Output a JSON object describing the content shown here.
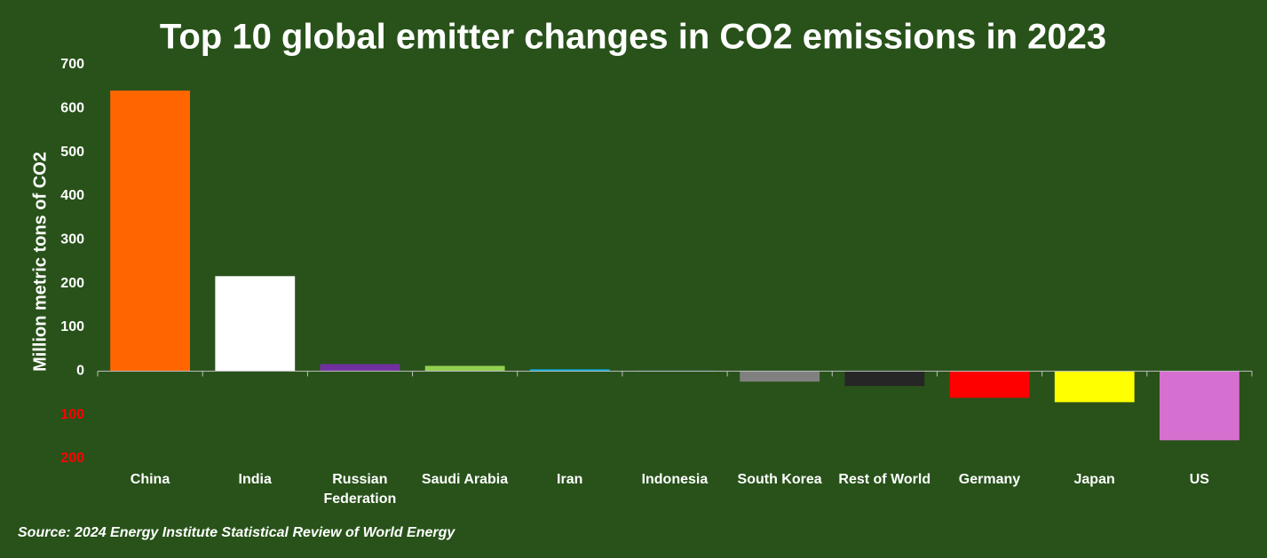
{
  "chart_data": {
    "type": "bar",
    "title": "Top 10 global emitter changes in CO2 emissions in 2023",
    "y_label": "Million metric tons of CO2",
    "source": "Source: 2024 Energy Institute Statistical Review of World Energy",
    "categories": [
      "China",
      "India",
      "Russian Federation",
      "Saudi Arabia",
      "Iran",
      "Indonesia",
      "South Korea",
      "Rest of World",
      "Germany",
      "Japan",
      "US"
    ],
    "values": [
      641,
      217,
      16,
      12,
      4,
      1,
      -24,
      -34,
      -61,
      -71,
      -158
    ],
    "colors": [
      "#ff6600",
      "#ffffff",
      "#7030a0",
      "#92d050",
      "#00b0f0",
      "#2e75b6",
      "#808080",
      "#262626",
      "#ff0000",
      "#ffff00",
      "#d670d0"
    ],
    "ylim": [
      -200,
      700
    ],
    "yticks": [
      {
        "value": -200,
        "label": "200"
      },
      {
        "value": -100,
        "label": "100"
      },
      0,
      100,
      200,
      300,
      400,
      500,
      600,
      700
    ],
    "grid": false
  }
}
